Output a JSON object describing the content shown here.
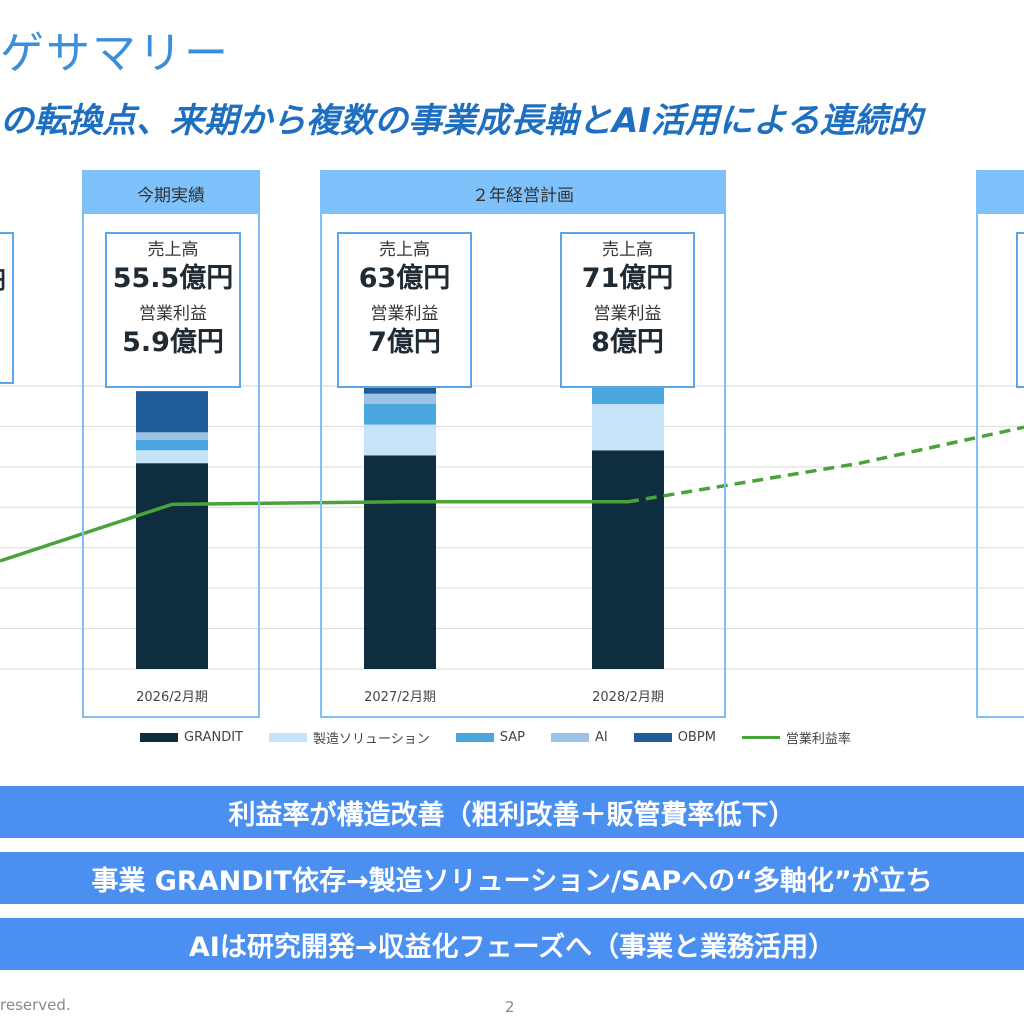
{
  "title": "ゲサマリー",
  "subtitle": "の転換点、来期から複数の事業成長軸とAI活用による連続的",
  "panels": {
    "current": {
      "header": "今期実績"
    },
    "plan": {
      "header": "２年経営計画"
    }
  },
  "kpis": {
    "left_partial": {
      "value": "円"
    },
    "fy2026": {
      "sales_label": "売上高",
      "sales_value": "55.5億円",
      "op_label": "営業利益",
      "op_value": "5.9億円"
    },
    "fy2027": {
      "sales_label": "売上高",
      "sales_value": "63億円",
      "op_label": "営業利益",
      "op_value": "7億円"
    },
    "fy2028": {
      "sales_label": "売上高",
      "sales_value": "71億円",
      "op_label": "営業利益",
      "op_value": "8億円"
    }
  },
  "chart_data": {
    "type": "bar",
    "categories": [
      "2026/2月期",
      "2027/2月期",
      "2028/2月期"
    ],
    "series": [
      {
        "name": "GRANDIT",
        "color": "#0e2e40",
        "values": [
          80,
          83,
          85
        ]
      },
      {
        "name": "製造ソリューション",
        "color": "#c6e3f7",
        "values": [
          5,
          12,
          18
        ]
      },
      {
        "name": "SAP",
        "color": "#49a6df",
        "values": [
          4,
          8,
          8
        ]
      },
      {
        "name": "AI",
        "color": "#9cc3e6",
        "values": [
          3,
          4,
          6
        ]
      },
      {
        "name": "OBPM",
        "color": "#1f5d9a",
        "values": [
          16,
          20,
          22
        ]
      }
    ],
    "line": {
      "name": "営業利益率",
      "color": "#4aa33a",
      "solid_points": [
        {
          "x": "prev",
          "y": 42
        },
        {
          "x": "2026/2月期",
          "y": 64
        },
        {
          "x": "2027/2月期",
          "y": 65
        },
        {
          "x": "2028/2月期",
          "y": 65
        }
      ],
      "dashed_points": [
        {
          "x": "2028/2月期",
          "y": 65
        },
        {
          "x": "next",
          "y": 80
        },
        {
          "x": "next2",
          "y": 94
        }
      ]
    },
    "ylim": [
      0,
      110
    ],
    "grid": true,
    "legend_position": "bottom"
  },
  "legend": [
    {
      "label": "GRANDIT",
      "color": "#0e2e40",
      "kind": "box"
    },
    {
      "label": "製造ソリューション",
      "color": "#c6e3f7",
      "kind": "box"
    },
    {
      "label": "SAP",
      "color": "#49a6df",
      "kind": "box"
    },
    {
      "label": "AI",
      "color": "#9cc3e6",
      "kind": "box"
    },
    {
      "label": "OBPM",
      "color": "#1f5d9a",
      "kind": "box"
    },
    {
      "label": "営業利益率",
      "color": "#4aa33a",
      "kind": "line"
    }
  ],
  "bands": [
    "利益率が構造改善（粗利改善＋販管費率低下）",
    "事業 GRANDIT依存→製造ソリューション/SAPへの“多軸化”が立ち",
    "AIは研究開発→収益化フェーズへ（事業と業務活用）"
  ],
  "footer": {
    "rights": "reserved.",
    "page": "2"
  }
}
